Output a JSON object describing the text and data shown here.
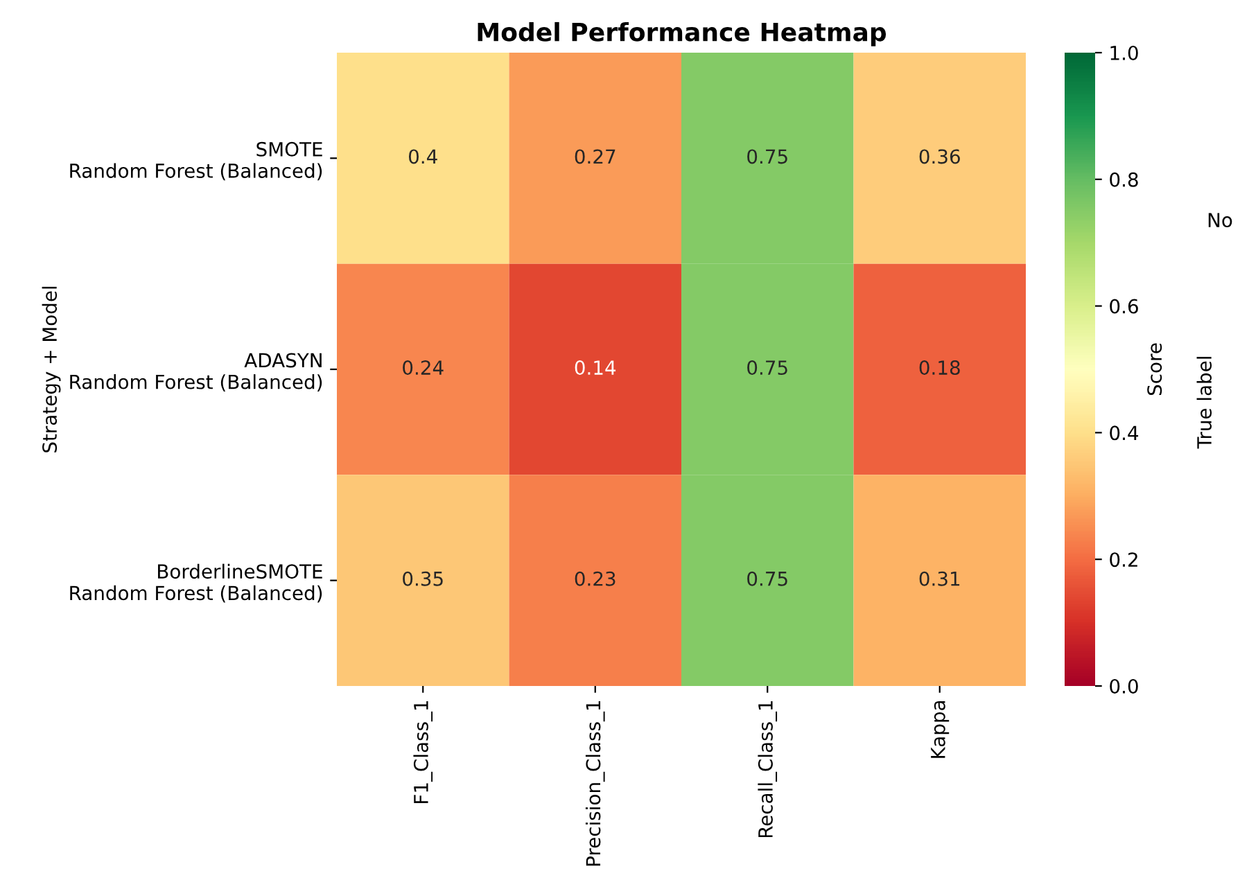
{
  "chart_data": {
    "type": "heatmap",
    "title": "Model Performance Heatmap",
    "ylabel": "Strategy + Model",
    "clabel": "Score",
    "categories": [
      "F1_Class_1",
      "Precision_Class_1",
      "Recall_Class_1",
      "Kappa"
    ],
    "y_categories": [
      "SMOTE\nRandom Forest (Balanced)",
      "ADASYN\nRandom Forest (Balanced)",
      "BorderlineSMOTE\nRandom Forest (Balanced)"
    ],
    "cells": [
      [
        0.4,
        0.27,
        0.75,
        0.36
      ],
      [
        0.24,
        0.14,
        0.75,
        0.18
      ],
      [
        0.35,
        0.23,
        0.75,
        0.31
      ]
    ],
    "clim": [
      0.0,
      1.0
    ],
    "cticks": [
      {
        "value": 0,
        "label": "0.0"
      },
      0.2,
      0.4,
      0.6,
      0.8,
      {
        "value": 1,
        "label": "1.0"
      }
    ],
    "data_labels": true,
    "annotations": [
      "True label",
      "No"
    ]
  }
}
